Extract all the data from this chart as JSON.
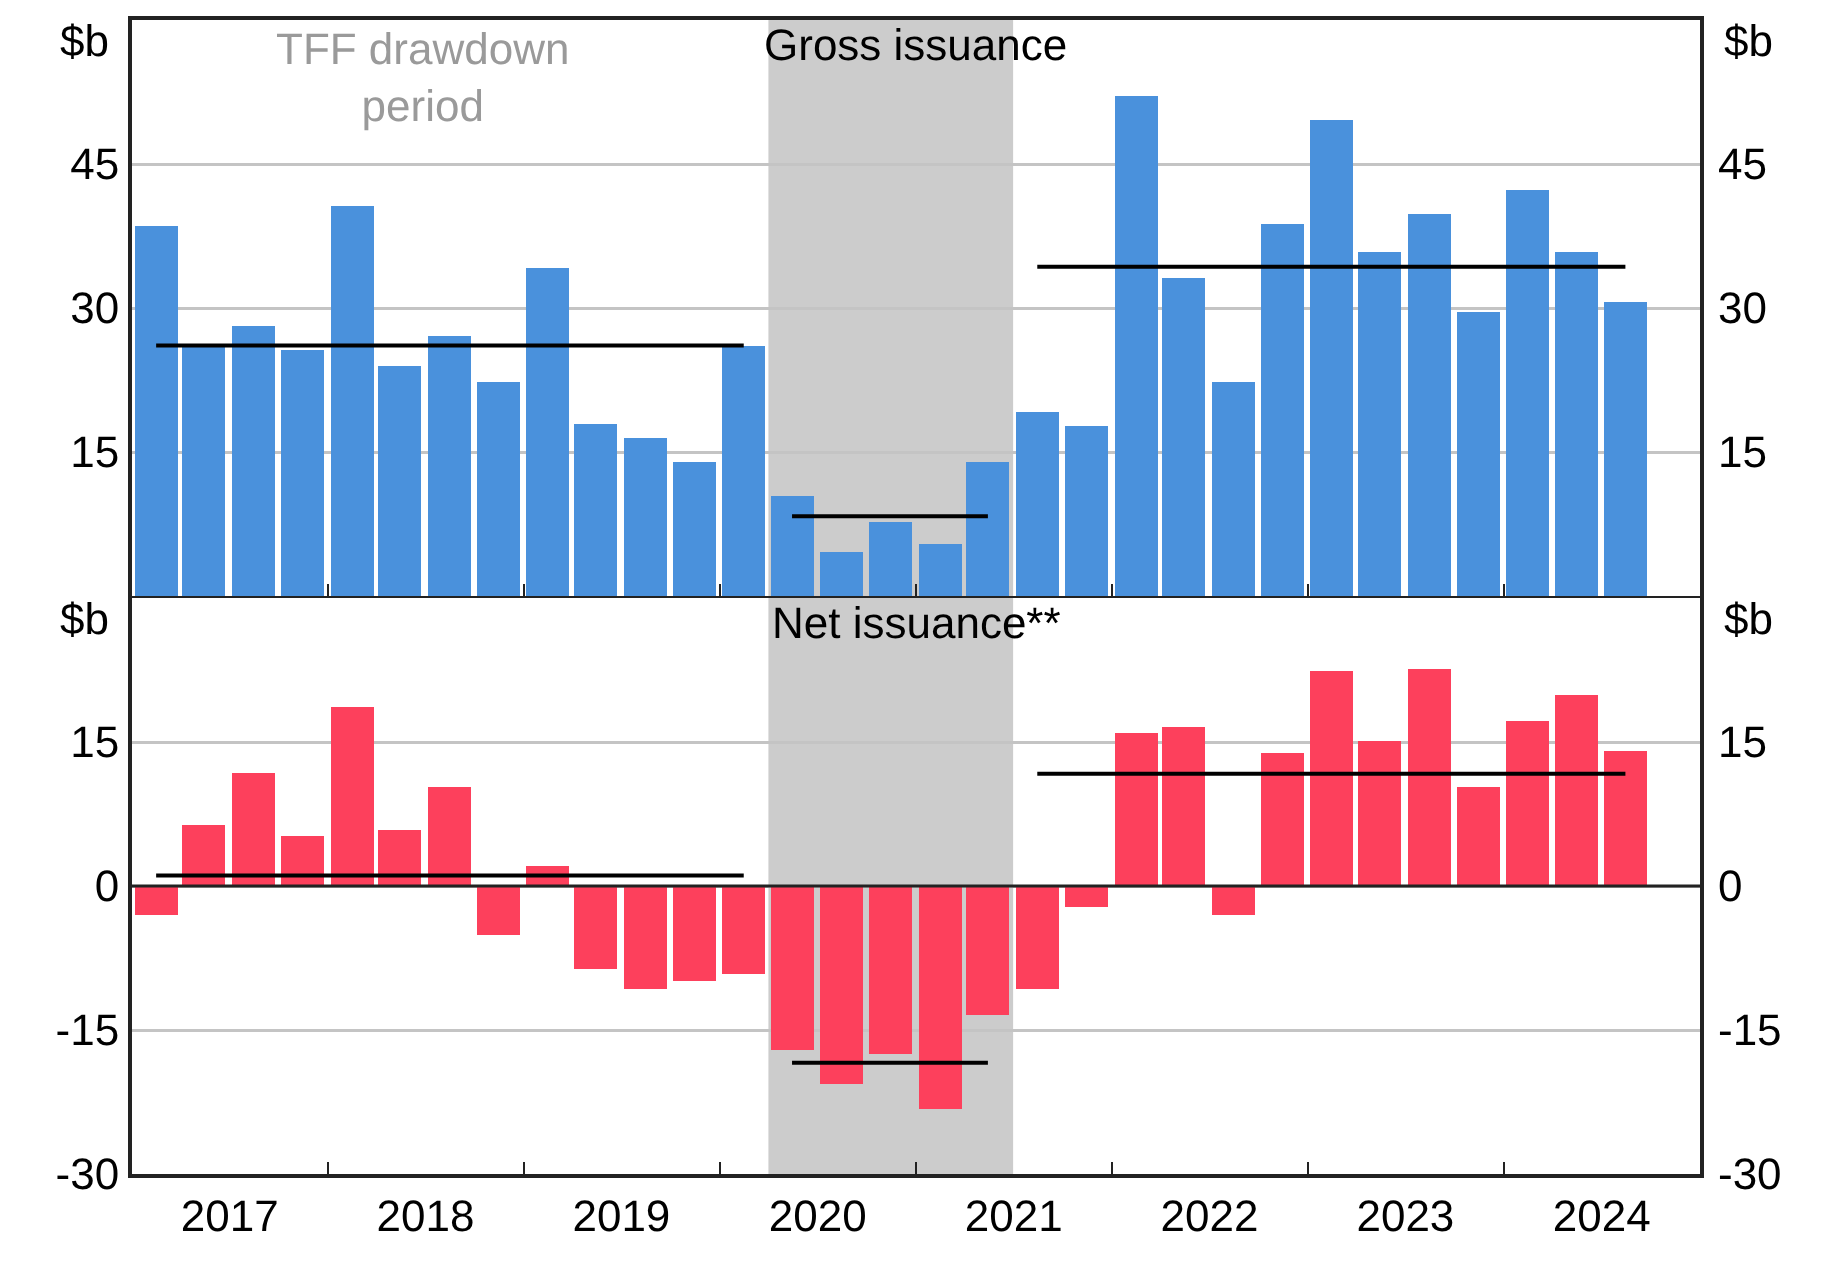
{
  "chart_data": [
    {
      "type": "bar",
      "title": "Gross issuance",
      "ylabel": "$b",
      "y2label": "$b",
      "x": [
        "2017-02-15",
        "2017-05-15",
        "2017-08-15",
        "2017-11-15",
        "2018-02-15",
        "2018-05-15",
        "2018-08-15",
        "2018-11-15",
        "2019-02-15",
        "2019-05-15",
        "2019-08-15",
        "2019-11-15",
        "2020-02-15",
        "2020-05-15",
        "2020-08-15",
        "2020-11-15",
        "2021-02-15",
        "2021-05-15",
        "2021-08-15",
        "2021-11-15",
        "2022-02-15",
        "2022-05-15",
        "2022-08-15",
        "2022-11-15",
        "2023-02-15",
        "2023-05-15",
        "2023-08-15",
        "2023-11-15",
        "2024-02-15",
        "2024-05-15",
        "2024-08-15"
      ],
      "series": [
        {
          "color": "#4a91dc",
          "values": [
            38.5,
            26.2,
            28.1,
            25.6,
            40.6,
            24.0,
            27.1,
            22.3,
            34.2,
            17.9,
            16.5,
            14.0,
            26.0,
            10.4,
            4.6,
            7.7,
            5.4,
            14.0,
            19.2,
            17.7,
            52.1,
            33.1,
            22.3,
            38.8,
            49.6,
            35.8,
            39.8,
            29.6,
            42.3,
            35.8,
            30.6
          ]
        },
        {
          "type": "line",
          "color": "#000000",
          "x": [
            "2017-02-15",
            "2020-02-15"
          ],
          "values": [
            26.1,
            26.1
          ]
        },
        {
          "type": "line",
          "color": "#000000",
          "x": [
            "2020-05-15",
            "2021-05-15"
          ],
          "values": [
            8.3,
            8.3
          ]
        },
        {
          "type": "line",
          "color": "#000000",
          "x": [
            "2021-08-15",
            "2024-08-15"
          ],
          "values": [
            34.3,
            34.3
          ]
        }
      ],
      "bands": [
        {
          "axis": "x",
          "from": "2020-04-01",
          "to": "2021-07-01",
          "color": "#cccccc"
        }
      ],
      "annotations": [
        "TFF drawdown period"
      ],
      "xlim": [
        "2017-01-01",
        "2025-01-01"
      ],
      "xticks": [
        {
          "value": "2018-01-01",
          "label": null
        },
        {
          "value": "2019-01-01",
          "label": null
        },
        {
          "value": "2020-01-01",
          "label": null
        },
        {
          "value": "2021-01-01",
          "label": null
        },
        {
          "value": "2022-01-01",
          "label": null
        },
        {
          "value": "2023-01-01",
          "label": null
        },
        {
          "value": "2024-01-01",
          "label": null
        }
      ],
      "ylim": [
        0,
        60
      ],
      "yticks": [
        15,
        30,
        45
      ],
      "y2lim": [
        0,
        60
      ],
      "y2ticks": [
        15,
        30,
        45
      ],
      "grid": "y",
      "marker": "none",
      "tick_labels": "y"
    },
    {
      "type": "bar",
      "title": "Net issuance**",
      "ylabel": "$b",
      "y2label": "$b",
      "x": [
        "2017-02-15",
        "2017-05-15",
        "2017-08-15",
        "2017-11-15",
        "2018-02-15",
        "2018-05-15",
        "2018-08-15",
        "2018-11-15",
        "2019-02-15",
        "2019-05-15",
        "2019-08-15",
        "2019-11-15",
        "2020-02-15",
        "2020-05-15",
        "2020-08-15",
        "2020-11-15",
        "2021-02-15",
        "2021-05-15",
        "2021-08-15",
        "2021-11-15",
        "2022-02-15",
        "2022-05-15",
        "2022-08-15",
        "2022-11-15",
        "2023-02-15",
        "2023-05-15",
        "2023-08-15",
        "2023-11-15",
        "2024-02-15",
        "2024-05-15",
        "2024-08-15"
      ],
      "series": [
        {
          "color": "#fd405c",
          "values": [
            -3.0,
            6.4,
            11.8,
            5.2,
            18.6,
            5.8,
            10.3,
            -5.1,
            2.1,
            -8.6,
            -10.7,
            -9.9,
            -9.2,
            -17.1,
            -20.6,
            -17.5,
            -23.2,
            -13.4,
            -10.7,
            -2.2,
            15.9,
            16.6,
            -3.0,
            13.9,
            22.4,
            15.1,
            22.6,
            10.3,
            17.2,
            19.9,
            14.1
          ]
        },
        {
          "type": "line",
          "color": "#000000",
          "x": [
            "2017-02-15",
            "2020-02-15"
          ],
          "values": [
            1.1,
            1.1
          ]
        },
        {
          "type": "line",
          "color": "#000000",
          "x": [
            "2020-05-15",
            "2021-05-15"
          ],
          "values": [
            -18.4,
            -18.4
          ]
        },
        {
          "type": "line",
          "color": "#000000",
          "x": [
            "2021-08-15",
            "2024-08-15"
          ],
          "values": [
            11.7,
            11.7
          ]
        }
      ],
      "bands": [
        {
          "axis": "x",
          "from": "2020-04-01",
          "to": "2021-07-01",
          "color": "#cccccc"
        }
      ],
      "xlim": [
        "2017-01-01",
        "2025-01-01"
      ],
      "xticks": [
        {
          "value": "2018-01-01",
          "label": null
        },
        {
          "value": "2019-01-01",
          "label": null
        },
        {
          "value": "2020-01-01",
          "label": null
        },
        {
          "value": "2021-01-01",
          "label": null
        },
        {
          "value": "2022-01-01",
          "label": null
        },
        {
          "value": "2023-01-01",
          "label": null
        },
        {
          "value": "2024-01-01",
          "label": null
        },
        {
          "value": "2017-07-02",
          "label": "2017"
        },
        {
          "value": "2018-07-02",
          "label": "2018"
        },
        {
          "value": "2019-07-02",
          "label": "2019"
        },
        {
          "value": "2020-07-02",
          "label": "2020"
        },
        {
          "value": "2021-07-02",
          "label": "2021"
        },
        {
          "value": "2022-07-02",
          "label": "2022"
        },
        {
          "value": "2023-07-02",
          "label": "2023"
        },
        {
          "value": "2024-07-02",
          "label": "2024"
        }
      ],
      "ylim": [
        -30,
        30
      ],
      "yticks": [
        -30,
        -15,
        0,
        15
      ],
      "y2lim": [
        -30,
        30
      ],
      "y2ticks": [
        -30,
        -15,
        0,
        15
      ],
      "grid": "y",
      "marker": "none"
    }
  ]
}
